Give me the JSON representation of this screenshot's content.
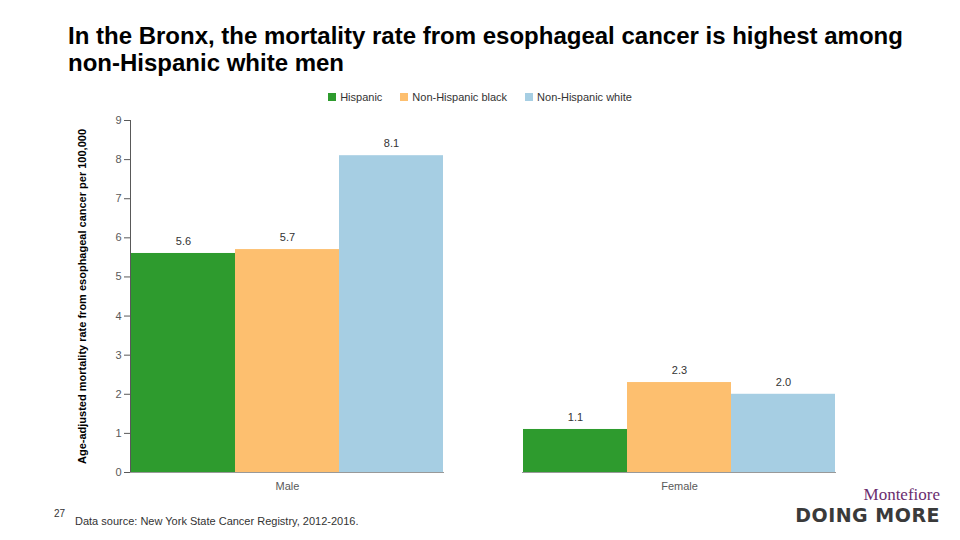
{
  "chart_data": {
    "type": "bar",
    "title": "In the Bronx, the mortality rate from esophageal cancer is highest among non-Hispanic white men",
    "y_label": "Age-adjusted mortality rate from esophageal cancer per 100,000",
    "categories": [
      "Male",
      "Female"
    ],
    "series": [
      {
        "name": "Hispanic",
        "color": "#2e9b2e",
        "values": [
          5.6,
          1.1
        ],
        "value_labels": [
          "5.6",
          "1.1"
        ]
      },
      {
        "name": "Non-Hispanic black",
        "color": "#fdbf6f",
        "values": [
          5.7,
          2.3
        ],
        "value_labels": [
          "5.7",
          "2.3"
        ]
      },
      {
        "name": "Non-Hispanic white",
        "color": "#a6cee3",
        "values": [
          8.1,
          2.0
        ],
        "value_labels": [
          "8.1",
          "2.0"
        ]
      }
    ],
    "ylim": [
      0,
      9
    ],
    "yticks": [
      0,
      1,
      2,
      3,
      4,
      5,
      6,
      7,
      8,
      9
    ],
    "grid": false,
    "legend": "top",
    "data_labels": true,
    "source": "Data source: New York State Cancer Registry, 2012-2016.",
    "page_number": "27",
    "logo_text": [
      "Montefiore",
      "DOING MORE"
    ]
  }
}
